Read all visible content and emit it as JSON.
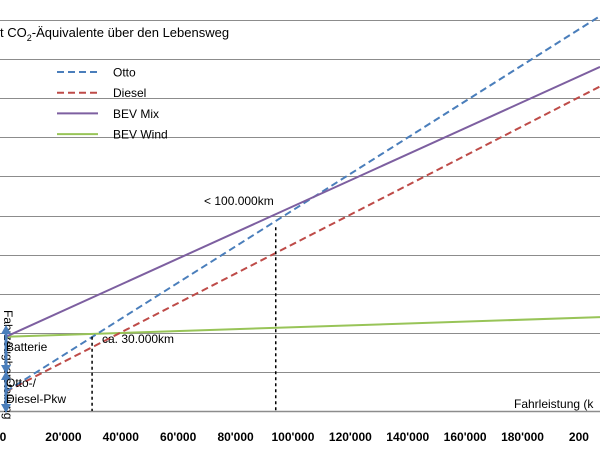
{
  "chart_data": {
    "type": "line",
    "title_prefix": "t CO",
    "title_sub": "2",
    "title_suffix": "-Äquivalente über den Lebensweg",
    "xlabel": "Fahrleistung (k",
    "ylabel": "Fahrzeugherstellung",
    "xlim": [
      0,
      207000
    ],
    "x_ticks": [
      "0",
      "20'000",
      "40'000",
      "60'000",
      "80'000",
      "100'000",
      "120'000",
      "140'000",
      "160'000",
      "180'000",
      "200"
    ],
    "series": [
      {
        "name": "Otto",
        "color": "#4a7ebb",
        "dashed": true,
        "start": [
          0,
          0.5
        ],
        "end": [
          207000,
          10.1
        ]
      },
      {
        "name": "Diesel",
        "color": "#be4b48",
        "dashed": true,
        "start": [
          0,
          0.5
        ],
        "end": [
          207000,
          8.3
        ]
      },
      {
        "name": "BEV Mix",
        "color": "#7d5fa0",
        "dashed": false,
        "start": [
          0,
          1.9
        ],
        "end": [
          207000,
          8.8
        ]
      },
      {
        "name": "BEV Wind",
        "color": "#98c458",
        "dashed": false,
        "start": [
          0,
          1.9
        ],
        "end": [
          207000,
          2.4
        ]
      }
    ],
    "annotations": [
      {
        "text": "< 100.000km",
        "x": 94000,
        "y": 4.7
      },
      {
        "text": "ca. 30.000km",
        "x": 30000,
        "y": 1.9
      }
    ],
    "bar_labels": {
      "battery": "Batterie",
      "ice_line1": "Otto-/",
      "ice_line2": "Diesel-Pkw"
    },
    "colors": {
      "grid": "#8c8c8c",
      "arrow": "#4a7ebb"
    }
  }
}
